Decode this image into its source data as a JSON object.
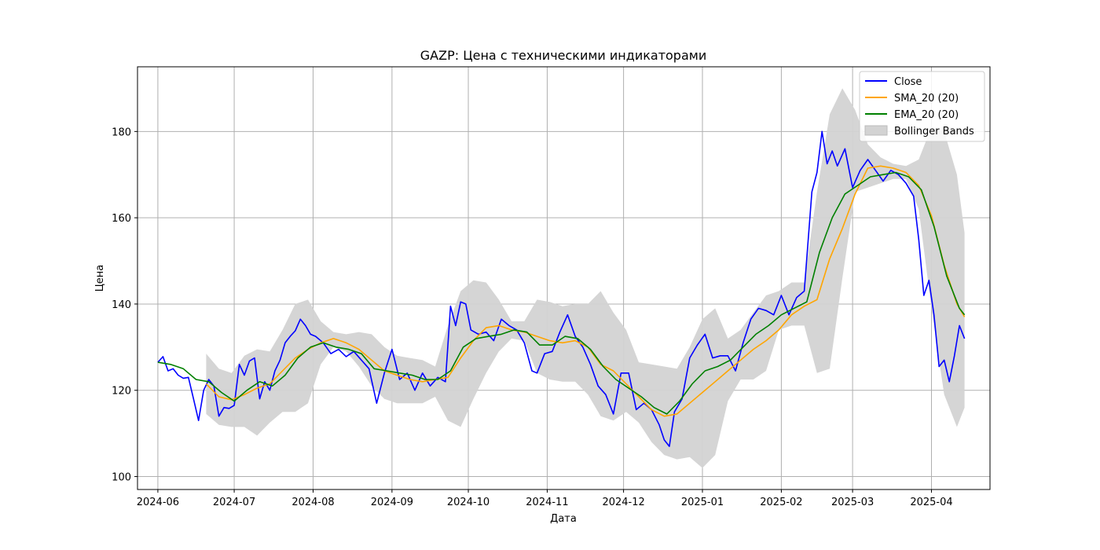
{
  "chart_data": {
    "type": "line",
    "title": "GAZP: Цена с техническими индикаторами",
    "xlabel": "Дата",
    "ylabel": "Цена",
    "xlim": [
      "2024-05-24",
      "2025-04-24"
    ],
    "ylim": [
      97,
      195
    ],
    "x_ticks": [
      "2024-06-01",
      "2024-07-01",
      "2024-08-01",
      "2024-09-01",
      "2024-10-01",
      "2024-11-01",
      "2024-12-01",
      "2025-01-01",
      "2025-02-01",
      "2025-03-01",
      "2025-04-01"
    ],
    "x_tick_labels": [
      "2024-06",
      "2024-07",
      "2024-08",
      "2024-09",
      "2024-10",
      "2024-11",
      "2024-12",
      "2025-01",
      "2025-02",
      "2025-03",
      "2025-04"
    ],
    "y_ticks": [
      100,
      120,
      140,
      160,
      180
    ],
    "grid": true,
    "legend_position": "top-right",
    "series": [
      {
        "name": "Close",
        "color": "#0000ff",
        "x": [
          "2024-06-01",
          "2024-06-03",
          "2024-06-05",
          "2024-06-07",
          "2024-06-09",
          "2024-06-11",
          "2024-06-13",
          "2024-06-15",
          "2024-06-17",
          "2024-06-19",
          "2024-06-21",
          "2024-06-23",
          "2024-06-25",
          "2024-06-27",
          "2024-06-29",
          "2024-07-01",
          "2024-07-03",
          "2024-07-05",
          "2024-07-07",
          "2024-07-09",
          "2024-07-11",
          "2024-07-13",
          "2024-07-15",
          "2024-07-17",
          "2024-07-19",
          "2024-07-21",
          "2024-07-23",
          "2024-07-25",
          "2024-07-27",
          "2024-07-29",
          "2024-07-31",
          "2024-08-02",
          "2024-08-05",
          "2024-08-08",
          "2024-08-11",
          "2024-08-14",
          "2024-08-17",
          "2024-08-20",
          "2024-08-23",
          "2024-08-26",
          "2024-08-29",
          "2024-09-01",
          "2024-09-04",
          "2024-09-07",
          "2024-09-10",
          "2024-09-13",
          "2024-09-16",
          "2024-09-19",
          "2024-09-22",
          "2024-09-24",
          "2024-09-26",
          "2024-09-28",
          "2024-09-30",
          "2024-10-02",
          "2024-10-05",
          "2024-10-08",
          "2024-10-11",
          "2024-10-14",
          "2024-10-17",
          "2024-10-20",
          "2024-10-23",
          "2024-10-26",
          "2024-10-28",
          "2024-10-31",
          "2024-11-03",
          "2024-11-06",
          "2024-11-09",
          "2024-11-12",
          "2024-11-15",
          "2024-11-18",
          "2024-11-21",
          "2024-11-24",
          "2024-11-27",
          "2024-11-30",
          "2024-12-03",
          "2024-12-06",
          "2024-12-09",
          "2024-12-12",
          "2024-12-15",
          "2024-12-17",
          "2024-12-19",
          "2024-12-21",
          "2024-12-24",
          "2024-12-27",
          "2024-12-30",
          "2025-01-02",
          "2025-01-05",
          "2025-01-08",
          "2025-01-11",
          "2025-01-14",
          "2025-01-17",
          "2025-01-20",
          "2025-01-23",
          "2025-01-26",
          "2025-01-29",
          "2025-02-01",
          "2025-02-04",
          "2025-02-07",
          "2025-02-10",
          "2025-02-13",
          "2025-02-15",
          "2025-02-17",
          "2025-02-19",
          "2025-02-21",
          "2025-02-23",
          "2025-02-26",
          "2025-03-01",
          "2025-03-04",
          "2025-03-07",
          "2025-03-10",
          "2025-03-13",
          "2025-03-16",
          "2025-03-19",
          "2025-03-22",
          "2025-03-25",
          "2025-03-27",
          "2025-03-29",
          "2025-03-31",
          "2025-04-02",
          "2025-04-04",
          "2025-04-06",
          "2025-04-08",
          "2025-04-10",
          "2025-04-12",
          "2025-04-14"
        ],
        "values": [
          126.5,
          127.8,
          124.5,
          125.0,
          123.5,
          122.8,
          123.0,
          118.0,
          113.0,
          120.0,
          122.5,
          121.0,
          114.0,
          116.0,
          115.8,
          116.5,
          126.0,
          123.5,
          126.8,
          127.5,
          118.0,
          122.0,
          120.0,
          124.5,
          127.0,
          131.0,
          132.5,
          133.8,
          136.5,
          135.0,
          133.0,
          132.5,
          131.0,
          128.5,
          129.5,
          127.8,
          129.0,
          127.0,
          125.0,
          117.0,
          124.0,
          129.5,
          122.5,
          124.0,
          120.0,
          124.0,
          121.0,
          123.0,
          122.0,
          139.5,
          135.0,
          140.5,
          140.0,
          134.0,
          133.0,
          133.5,
          131.5,
          136.5,
          135.0,
          134.0,
          131.0,
          124.5,
          124.0,
          128.5,
          129.0,
          133.5,
          137.5,
          132.5,
          130.0,
          126.0,
          121.0,
          119.0,
          114.5,
          124.0,
          124.0,
          115.5,
          117.0,
          115.5,
          112.0,
          108.5,
          107.0,
          115.0,
          118.0,
          127.5,
          130.5,
          133.0,
          127.5,
          128.0,
          128.0,
          124.5,
          131.0,
          136.5,
          139.0,
          138.5,
          137.5,
          142.0,
          137.5,
          141.5,
          143.0,
          166.0,
          170.5,
          180.0,
          172.5,
          175.5,
          172.0,
          176.0,
          167.0,
          171.0,
          173.5,
          171.0,
          168.5,
          171.0,
          170.0,
          168.0,
          165.0,
          155.0,
          142.0,
          145.5,
          137.5,
          125.5,
          127.0,
          122.0,
          128.0,
          135.0,
          132.0
        ]
      },
      {
        "name": "SMA_20 (20)",
        "color": "#ffa500",
        "x": [
          "2024-06-20",
          "2024-06-25",
          "2024-06-30",
          "2024-07-05",
          "2024-07-10",
          "2024-07-15",
          "2024-07-20",
          "2024-07-25",
          "2024-07-30",
          "2024-08-04",
          "2024-08-09",
          "2024-08-14",
          "2024-08-19",
          "2024-08-24",
          "2024-08-29",
          "2024-09-03",
          "2024-09-08",
          "2024-09-13",
          "2024-09-18",
          "2024-09-23",
          "2024-09-28",
          "2024-10-03",
          "2024-10-08",
          "2024-10-13",
          "2024-10-18",
          "2024-10-23",
          "2024-10-28",
          "2024-11-02",
          "2024-11-07",
          "2024-11-12",
          "2024-11-17",
          "2024-11-22",
          "2024-11-27",
          "2024-12-02",
          "2024-12-07",
          "2024-12-12",
          "2024-12-17",
          "2024-12-22",
          "2024-12-27",
          "2025-01-01",
          "2025-01-06",
          "2025-01-11",
          "2025-01-16",
          "2025-01-21",
          "2025-01-26",
          "2025-01-31",
          "2025-02-05",
          "2025-02-10",
          "2025-02-15",
          "2025-02-20",
          "2025-02-25",
          "2025-03-02",
          "2025-03-07",
          "2025-03-12",
          "2025-03-17",
          "2025-03-22",
          "2025-03-27",
          "2025-04-01",
          "2025-04-06",
          "2025-04-11",
          "2025-04-14"
        ],
        "values": [
          121.5,
          118.5,
          117.8,
          119.0,
          120.5,
          121.5,
          124.5,
          127.5,
          129.5,
          131.0,
          132.0,
          131.0,
          129.5,
          127.0,
          124.5,
          123.5,
          122.5,
          122.0,
          122.5,
          123.0,
          127.5,
          131.5,
          134.5,
          135.0,
          134.0,
          133.5,
          132.5,
          131.5,
          131.0,
          131.5,
          130.0,
          126.0,
          124.5,
          121.5,
          118.5,
          115.5,
          114.0,
          114.5,
          117.0,
          119.5,
          122.0,
          124.5,
          127.0,
          129.5,
          131.5,
          134.0,
          137.5,
          139.5,
          141.0,
          150.5,
          157.5,
          165.5,
          171.5,
          172.0,
          171.5,
          170.5,
          167.5,
          160.5,
          149.0,
          140.0,
          137.0
        ]
      },
      {
        "name": "EMA_20 (20)",
        "color": "#008000",
        "x": [
          "2024-06-01",
          "2024-06-06",
          "2024-06-11",
          "2024-06-16",
          "2024-06-21",
          "2024-06-26",
          "2024-07-01",
          "2024-07-06",
          "2024-07-11",
          "2024-07-16",
          "2024-07-21",
          "2024-07-26",
          "2024-07-31",
          "2024-08-05",
          "2024-08-10",
          "2024-08-15",
          "2024-08-20",
          "2024-08-25",
          "2024-08-30",
          "2024-09-04",
          "2024-09-09",
          "2024-09-14",
          "2024-09-19",
          "2024-09-24",
          "2024-09-29",
          "2024-10-04",
          "2024-10-09",
          "2024-10-14",
          "2024-10-19",
          "2024-10-24",
          "2024-10-29",
          "2024-11-03",
          "2024-11-08",
          "2024-11-13",
          "2024-11-18",
          "2024-11-23",
          "2024-11-28",
          "2024-12-03",
          "2024-12-08",
          "2024-12-13",
          "2024-12-18",
          "2024-12-23",
          "2024-12-28",
          "2025-01-02",
          "2025-01-07",
          "2025-01-12",
          "2025-01-17",
          "2025-01-22",
          "2025-01-27",
          "2025-02-01",
          "2025-02-06",
          "2025-02-11",
          "2025-02-16",
          "2025-02-21",
          "2025-02-26",
          "2025-03-03",
          "2025-03-08",
          "2025-03-13",
          "2025-03-18",
          "2025-03-23",
          "2025-03-28",
          "2025-04-02",
          "2025-04-07",
          "2025-04-12",
          "2025-04-14"
        ],
        "values": [
          126.5,
          126.0,
          125.0,
          122.5,
          122.0,
          119.5,
          117.5,
          120.0,
          122.0,
          121.0,
          123.5,
          127.5,
          130.0,
          131.0,
          130.0,
          129.5,
          128.5,
          125.0,
          124.5,
          124.0,
          123.5,
          122.5,
          122.5,
          124.5,
          130.0,
          132.0,
          132.5,
          133.0,
          134.0,
          133.5,
          130.5,
          130.5,
          132.5,
          132.0,
          129.5,
          125.5,
          122.5,
          120.5,
          118.5,
          116.0,
          114.5,
          117.5,
          121.5,
          124.5,
          125.5,
          127.0,
          130.0,
          133.0,
          135.0,
          137.5,
          139.0,
          140.5,
          152.0,
          160.0,
          165.5,
          167.5,
          169.5,
          170.0,
          170.5,
          169.5,
          166.5,
          158.0,
          146.5,
          139.0,
          137.5
        ]
      },
      {
        "name": "Bollinger Bands",
        "color": "#d3d3d3",
        "type": "area",
        "x": [
          "2024-06-20",
          "2024-06-25",
          "2024-06-30",
          "2024-07-05",
          "2024-07-10",
          "2024-07-15",
          "2024-07-20",
          "2024-07-25",
          "2024-07-30",
          "2024-08-04",
          "2024-08-09",
          "2024-08-14",
          "2024-08-19",
          "2024-08-24",
          "2024-08-29",
          "2024-09-03",
          "2024-09-08",
          "2024-09-13",
          "2024-09-18",
          "2024-09-23",
          "2024-09-28",
          "2024-10-03",
          "2024-10-08",
          "2024-10-13",
          "2024-10-18",
          "2024-10-23",
          "2024-10-28",
          "2024-11-02",
          "2024-11-07",
          "2024-11-12",
          "2024-11-17",
          "2024-11-22",
          "2024-11-27",
          "2024-12-02",
          "2024-12-07",
          "2024-12-12",
          "2024-12-17",
          "2024-12-22",
          "2024-12-27",
          "2025-01-01",
          "2025-01-06",
          "2025-01-11",
          "2025-01-16",
          "2025-01-21",
          "2025-01-26",
          "2025-01-31",
          "2025-02-05",
          "2025-02-10",
          "2025-02-15",
          "2025-02-20",
          "2025-02-25",
          "2025-03-02",
          "2025-03-07",
          "2025-03-12",
          "2025-03-17",
          "2025-03-22",
          "2025-03-27",
          "2025-04-01",
          "2025-04-06",
          "2025-04-11",
          "2025-04-14"
        ],
        "upper": [
          128.5,
          125.0,
          124.0,
          128.0,
          129.5,
          129.0,
          134.0,
          140.0,
          141.0,
          136.0,
          133.5,
          133.0,
          133.5,
          133.0,
          130.0,
          128.0,
          127.5,
          127.0,
          125.5,
          135.0,
          143.0,
          145.5,
          145.0,
          141.0,
          136.0,
          136.0,
          141.0,
          140.5,
          139.5,
          140.0,
          140.0,
          143.0,
          138.0,
          134.0,
          126.5,
          126.0,
          125.5,
          125.0,
          130.0,
          136.5,
          139.0,
          132.0,
          134.0,
          138.0,
          142.0,
          143.0,
          145.0,
          145.0,
          166.0,
          184.0,
          190.0,
          185.0,
          177.0,
          174.0,
          172.5,
          172.0,
          173.5,
          181.0,
          180.0,
          170.0,
          156.5
        ],
        "lower": [
          114.5,
          112.0,
          111.5,
          111.5,
          109.5,
          112.5,
          115.0,
          115.0,
          117.0,
          126.0,
          130.0,
          129.0,
          125.5,
          121.0,
          118.0,
          117.0,
          117.0,
          117.0,
          118.5,
          113.0,
          111.5,
          118.0,
          124.0,
          129.0,
          132.0,
          131.5,
          124.0,
          122.5,
          122.0,
          122.0,
          119.0,
          114.0,
          113.0,
          115.0,
          112.5,
          108.0,
          105.0,
          104.0,
          104.5,
          102.0,
          105.0,
          117.5,
          122.5,
          122.5,
          124.5,
          134.0,
          135.0,
          135.0,
          124.0,
          125.0,
          146.0,
          166.0,
          167.0,
          168.0,
          169.0,
          169.0,
          162.0,
          139.0,
          119.0,
          111.5,
          116.0
        ]
      }
    ]
  }
}
